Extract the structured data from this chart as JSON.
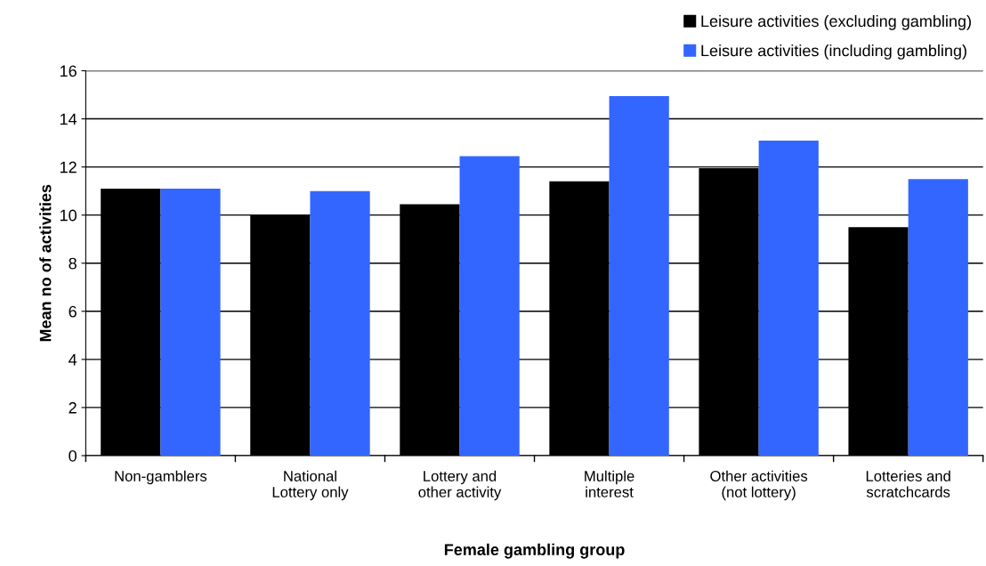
{
  "chart_data": {
    "type": "bar",
    "xlabel": "Female gambling group",
    "ylabel": "Mean no of activities",
    "categories": [
      "Non-gamblers",
      "National\nLottery only",
      "Lottery and\nother activity",
      "Multiple\ninterest",
      "Other activities\n(not lottery)",
      "Lotteries and\nscratchcards"
    ],
    "series": [
      {
        "name": "Leisure activities (excluding gambling)",
        "color": "#000000",
        "values": [
          11.1,
          10.0,
          10.45,
          11.4,
          11.95,
          9.5
        ]
      },
      {
        "name": "Leisure activities (including gambling)",
        "color": "#3366ff",
        "values": [
          11.1,
          11.0,
          12.45,
          14.95,
          13.1,
          11.5
        ]
      }
    ],
    "ylim": [
      0,
      16
    ],
    "yticks": [
      0,
      2,
      4,
      6,
      8,
      10,
      12,
      14,
      16
    ],
    "grid": "y",
    "legend": "top right"
  }
}
